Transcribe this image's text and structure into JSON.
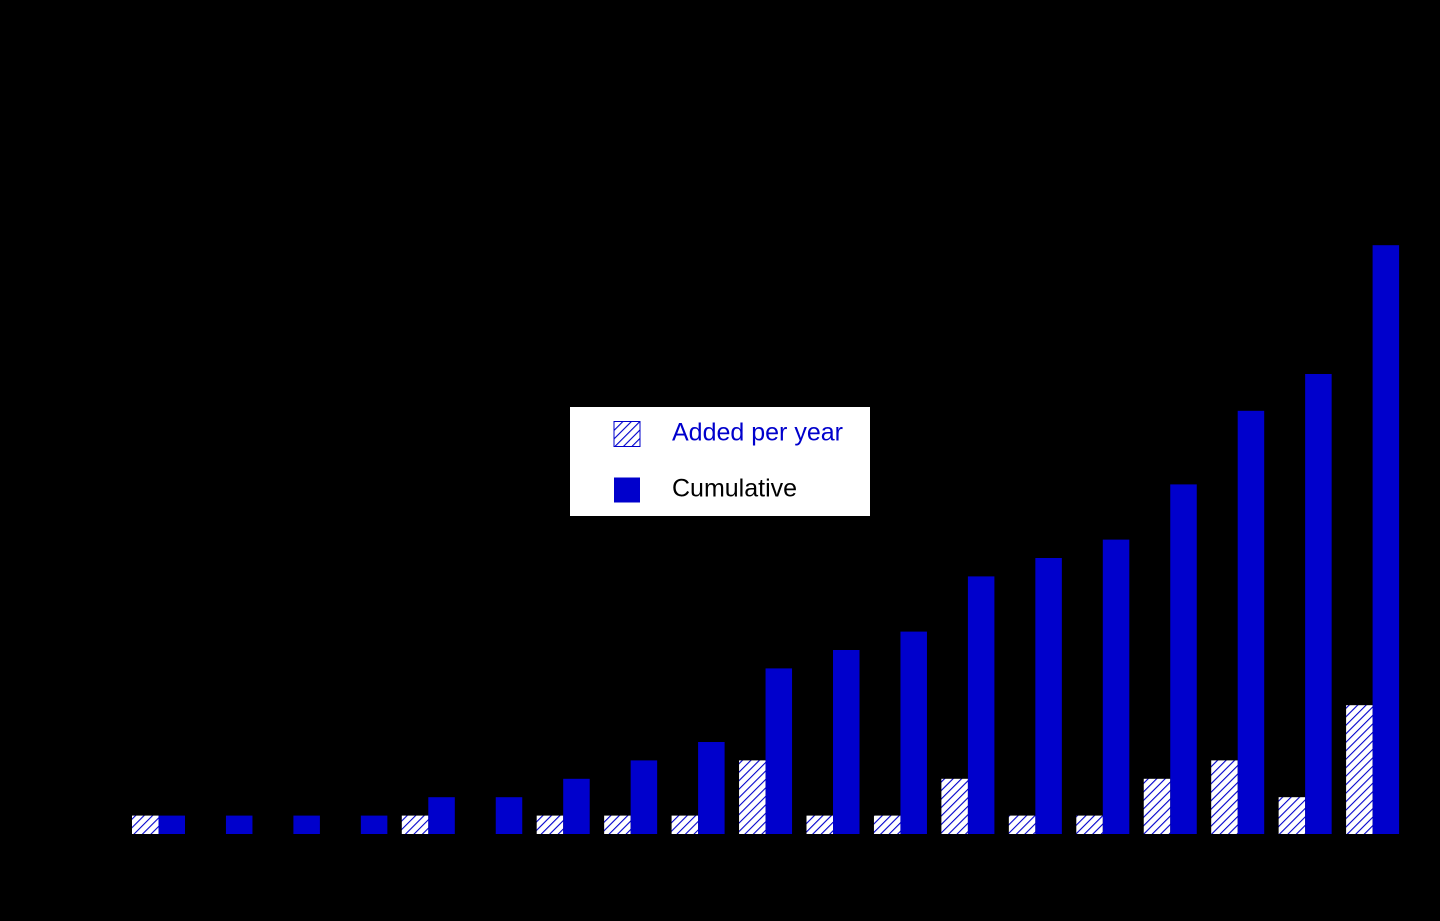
{
  "chart_data": {
    "type": "bar",
    "categories": [
      null,
      null,
      null,
      null,
      null,
      null,
      null,
      null,
      null,
      null,
      null,
      null,
      null,
      null,
      null,
      null,
      null,
      null,
      null
    ],
    "series": [
      {
        "name": "Added per year",
        "color": "#0000cc",
        "hatch": true,
        "values": [
          1,
          0,
          0,
          0,
          1,
          0,
          1,
          1,
          1,
          4,
          1,
          1,
          3,
          1,
          1,
          3,
          4,
          2,
          7
        ]
      },
      {
        "name": "Cumulative",
        "color": "#0000cc",
        "hatch": false,
        "values": [
          1,
          1,
          1,
          1,
          2,
          2,
          3,
          4,
          5,
          9,
          10,
          11,
          14,
          15,
          16,
          19,
          23,
          25,
          32
        ]
      }
    ],
    "ylim": [
      0,
      40
    ]
  }
}
